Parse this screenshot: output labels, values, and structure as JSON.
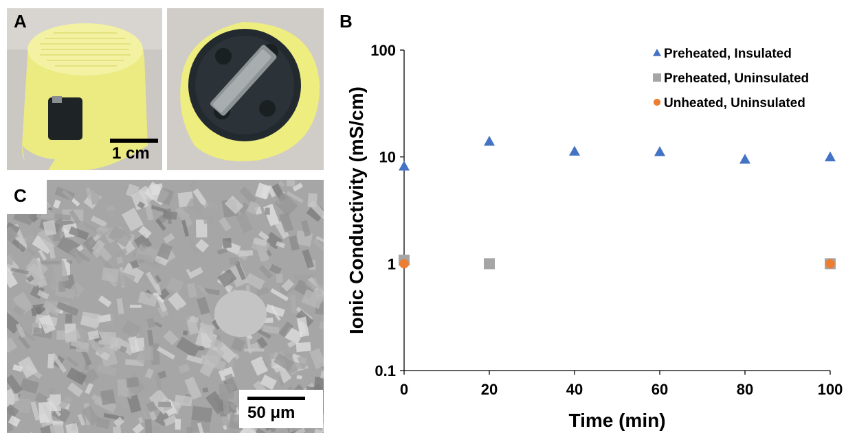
{
  "panels": {
    "a_label": "A",
    "b_label": "B",
    "c_label": "C"
  },
  "photo_a": {
    "scale_bar_label": "1 cm",
    "description_icon": "3d-printed-electrolyte-cell-photo"
  },
  "photo_c": {
    "scale_bar_label": "50 μm",
    "description_icon": "sem-micrograph-photo"
  },
  "colors": {
    "triangle": "#4472C4",
    "square": "#A5A5A5",
    "circle": "#ED7D31",
    "yellow": "#efee8a"
  },
  "chart_data": {
    "type": "scatter",
    "xlabel": "Time (min)",
    "ylabel": "Ionic Conductivity (mS/cm)",
    "x_ticks": [
      "0",
      "20",
      "40",
      "60",
      "80",
      "100"
    ],
    "y_ticks": [
      "0.1",
      "1",
      "10",
      "100"
    ],
    "xlim": [
      0,
      100
    ],
    "ylim": [
      0.1,
      100
    ],
    "y_scale": "log",
    "legend_position": "top-right",
    "series": [
      {
        "name": "Preheated, Insulated",
        "marker": "triangle",
        "color": "#4472C4",
        "points": [
          [
            0,
            8.2
          ],
          [
            20,
            14.0
          ],
          [
            40,
            11.3
          ],
          [
            60,
            11.2
          ],
          [
            80,
            9.5
          ],
          [
            100,
            10.0
          ]
        ]
      },
      {
        "name": "Preheated, Uninsulated",
        "marker": "square",
        "color": "#A5A5A5",
        "points": [
          [
            0,
            1.08
          ],
          [
            20,
            1.0
          ],
          [
            100,
            1.0
          ]
        ]
      },
      {
        "name": "Unheated, Uninsulated",
        "marker": "circle",
        "color": "#ED7D31",
        "points": [
          [
            0,
            1.0
          ],
          [
            100,
            1.0
          ]
        ]
      }
    ]
  }
}
